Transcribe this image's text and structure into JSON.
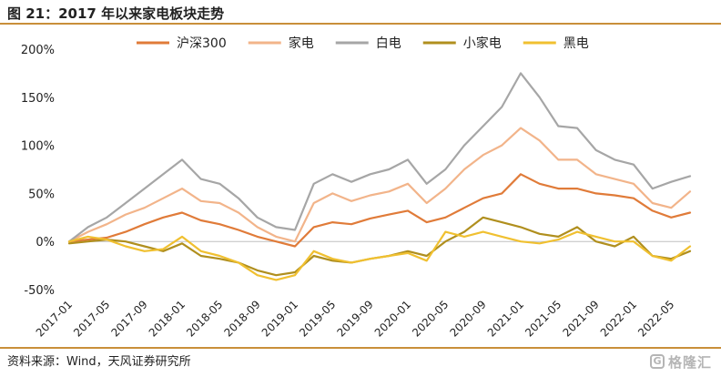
{
  "title": "图 21：2017 年以来家电板块走势",
  "source": "资料来源：Wind，天风证券研究所",
  "watermark": {
    "mark": "G",
    "text": "格隆汇"
  },
  "colors": {
    "accent": "#c98f3a"
  },
  "chart_data": {
    "type": "line",
    "title": "",
    "xlabel": "",
    "ylabel": "",
    "ylim": [
      -50,
      200
    ],
    "y_ticks": [
      "200%",
      "150%",
      "100%",
      "50%",
      "0%",
      "-50%"
    ],
    "y_tick_values": [
      200,
      150,
      100,
      50,
      0,
      -50
    ],
    "x_tick_labels": [
      "2017-01",
      "2017-05",
      "2017-09",
      "2018-01",
      "2018-05",
      "2018-09",
      "2019-01",
      "2019-05",
      "2019-09",
      "2020-01",
      "2020-05",
      "2020-09",
      "2021-01",
      "2021-05",
      "2021-09",
      "2022-01",
      "2022-05"
    ],
    "x": [
      "2017-01",
      "2017-03",
      "2017-05",
      "2017-07",
      "2017-09",
      "2017-11",
      "2018-01",
      "2018-03",
      "2018-05",
      "2018-07",
      "2018-09",
      "2018-11",
      "2019-01",
      "2019-03",
      "2019-05",
      "2019-07",
      "2019-09",
      "2019-11",
      "2020-01",
      "2020-03",
      "2020-05",
      "2020-07",
      "2020-09",
      "2020-11",
      "2021-01",
      "2021-03",
      "2021-05",
      "2021-07",
      "2021-09",
      "2021-11",
      "2022-01",
      "2022-03",
      "2022-05",
      "2022-07"
    ],
    "legend_position": "top",
    "grid": false,
    "series": [
      {
        "name": "沪深300",
        "color": "#e07b39",
        "values": [
          0,
          2,
          4,
          10,
          18,
          25,
          30,
          22,
          18,
          12,
          5,
          0,
          -5,
          15,
          20,
          18,
          24,
          28,
          32,
          20,
          25,
          35,
          45,
          50,
          70,
          60,
          55,
          55,
          50,
          48,
          45,
          32,
          25,
          30
        ]
      },
      {
        "name": "家电",
        "color": "#f2b48a",
        "values": [
          0,
          10,
          18,
          28,
          35,
          45,
          55,
          42,
          40,
          30,
          15,
          5,
          0,
          40,
          50,
          42,
          48,
          52,
          60,
          40,
          55,
          75,
          90,
          100,
          118,
          105,
          85,
          85,
          70,
          65,
          60,
          40,
          35,
          52
        ]
      },
      {
        "name": "白电",
        "color": "#a6a6a6",
        "values": [
          0,
          15,
          25,
          40,
          55,
          70,
          85,
          65,
          60,
          45,
          25,
          15,
          12,
          60,
          70,
          62,
          70,
          75,
          85,
          60,
          75,
          100,
          120,
          140,
          175,
          150,
          120,
          118,
          95,
          85,
          80,
          55,
          62,
          68
        ]
      },
      {
        "name": "小家电",
        "color": "#b08f1e",
        "values": [
          -2,
          0,
          2,
          0,
          -5,
          -10,
          -2,
          -15,
          -18,
          -22,
          -30,
          -35,
          -32,
          -15,
          -20,
          -22,
          -18,
          -15,
          -10,
          -15,
          0,
          10,
          25,
          20,
          15,
          8,
          5,
          15,
          0,
          -5,
          5,
          -15,
          -18,
          -10
        ]
      },
      {
        "name": "黑电",
        "color": "#f0c030",
        "values": [
          0,
          5,
          2,
          -5,
          -10,
          -8,
          5,
          -10,
          -15,
          -22,
          -35,
          -40,
          -35,
          -10,
          -18,
          -22,
          -18,
          -15,
          -12,
          -20,
          10,
          5,
          10,
          5,
          0,
          -2,
          2,
          10,
          5,
          0,
          0,
          -15,
          -20,
          -5
        ]
      }
    ]
  }
}
